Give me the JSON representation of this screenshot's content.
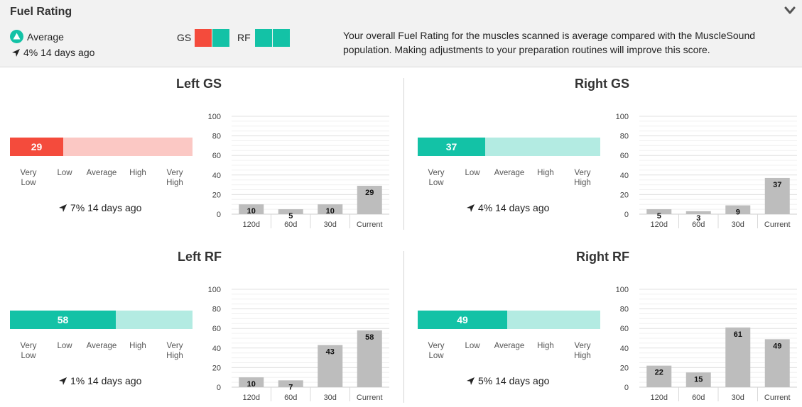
{
  "header": {
    "title": "Fuel Rating",
    "rating_label": "Average",
    "change": "4% 14 days ago",
    "gs_label": "GS",
    "rf_label": "RF",
    "description": "Your overall Fuel Rating for the muscles scanned is average compared with the MuscleSound population. Making adjustments to your preparation routines will improve this score.",
    "gs_swatches": [
      "#f44b3c",
      "#13c2a6"
    ],
    "rf_swatches": [
      "#13c2a6",
      "#13c2a6"
    ]
  },
  "colors": {
    "red_fill": "#f44b3c",
    "red_track": "#fbc8c4",
    "teal_fill": "#13c2a6",
    "teal_track": "#b3ebe2",
    "bar": "#bdbdbd"
  },
  "gauge_labels": [
    "Very Low",
    "Low",
    "Average",
    "High",
    "Very High"
  ],
  "panels": [
    {
      "title": "Left GS",
      "score": 29,
      "score_label": "29",
      "change": "7% 14 days ago"
    },
    {
      "title": "Right GS",
      "score": 37,
      "score_label": "37",
      "change": "4% 14 days ago"
    },
    {
      "title": "Left RF",
      "score": 58,
      "score_label": "58",
      "change": "1% 14 days ago"
    },
    {
      "title": "Right RF",
      "score": 49,
      "score_label": "49",
      "change": "5% 14 days ago"
    }
  ],
  "chart_data": [
    {
      "type": "bar",
      "categories": [
        "120d",
        "60d",
        "30d",
        "Current"
      ],
      "values": [
        10,
        5,
        10,
        29
      ],
      "ylim": [
        0,
        100
      ],
      "yticks": [
        0,
        20,
        40,
        60,
        80,
        100
      ]
    },
    {
      "type": "bar",
      "categories": [
        "120d",
        "60d",
        "30d",
        "Current"
      ],
      "values": [
        5,
        3,
        9,
        37
      ],
      "ylim": [
        0,
        100
      ],
      "yticks": [
        0,
        20,
        40,
        60,
        80,
        100
      ]
    },
    {
      "type": "bar",
      "categories": [
        "120d",
        "60d",
        "30d",
        "Current"
      ],
      "values": [
        10,
        7,
        43,
        58
      ],
      "ylim": [
        0,
        100
      ],
      "yticks": [
        0,
        20,
        40,
        60,
        80,
        100
      ]
    },
    {
      "type": "bar",
      "categories": [
        "120d",
        "60d",
        "30d",
        "Current"
      ],
      "values": [
        22,
        15,
        61,
        49
      ],
      "ylim": [
        0,
        100
      ],
      "yticks": [
        0,
        20,
        40,
        60,
        80,
        100
      ]
    }
  ]
}
